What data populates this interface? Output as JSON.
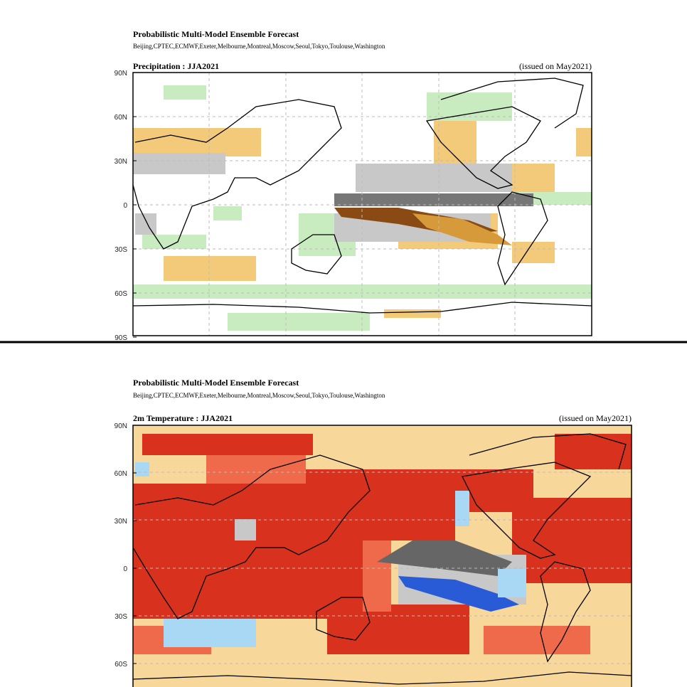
{
  "panels": [
    {
      "title": "Probabilistic Multi-Model Ensemble Forecast",
      "subtitle": "Beijing,CPTEC,ECMWF,Exeter,Melbourne,Montreal,Moscow,Seoul,Tokyo,Toulouse,Washington",
      "map_title": "Precipitation : JJA2021",
      "issued": "(issued on May2021)",
      "lat_labels": [
        "90N",
        "60N",
        "30N",
        "0",
        "30S",
        "60S",
        "90S"
      ]
    },
    {
      "title": "Probabilistic Multi-Model Ensemble Forecast",
      "subtitle": "Beijing,CPTEC,ECMWF,Exeter,Melbourne,Montreal,Moscow,Seoul,Tokyo,Toulouse,Washington",
      "map_title": "2m Temperature : JJA2021",
      "issued": "(issued on May2021)",
      "lat_labels": [
        "90N",
        "60N",
        "30N",
        "0",
        "30S",
        "60S"
      ]
    }
  ]
}
